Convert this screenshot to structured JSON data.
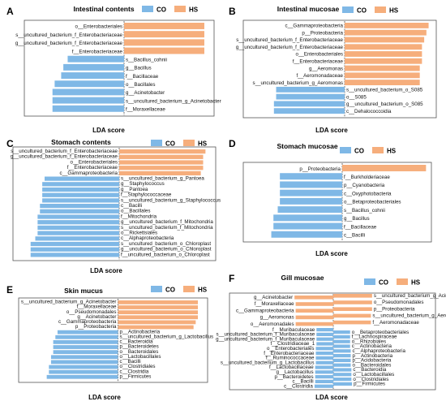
{
  "colors": {
    "CO": "#7fb8e6",
    "HS": "#f6ae7c",
    "axis": "#555555"
  },
  "chart_data": [
    {
      "type": "bar",
      "panel": "A",
      "title": "Intestinal contents",
      "xlabel": "LDA score",
      "legend": [
        "CO",
        "HS"
      ],
      "HS": [
        {
          "label": "o__Enterobacteriales",
          "value": 3.7
        },
        {
          "label": "s__uncultured_bacterium_f_Enterobacteriaceae",
          "value": 3.7
        },
        {
          "label": "g__uncultured_bacterium_f_Enterobacteriaceae",
          "value": 3.7
        },
        {
          "label": "f__Enterobacteriaceae",
          "value": 3.7
        }
      ],
      "CO": [
        {
          "label": "s__Bacillus_cohnii",
          "value": 2.6
        },
        {
          "label": "g__Bacillus",
          "value": 2.8
        },
        {
          "label": "f__Bacillaceae",
          "value": 2.9
        },
        {
          "label": "o__Bacillales",
          "value": 3.2
        },
        {
          "label": "g__Acinetobacter",
          "value": 3.3
        },
        {
          "label": "s__uncultured_bacterium_g_Acinetobacter",
          "value": 3.3
        },
        {
          "label": "f__Moraxellaceae",
          "value": 3.3
        }
      ]
    },
    {
      "type": "bar",
      "panel": "B",
      "title": "Intestinal mucosae",
      "xlabel": "LDA score",
      "legend": [
        "CO",
        "HS"
      ],
      "HS": [
        {
          "label": "c__Gammaproteobacteria",
          "value": 3.8
        },
        {
          "label": "p__Proteobacteria",
          "value": 3.7
        },
        {
          "label": "s__uncultured_bacterium_f_Enterobacteriaceae",
          "value": 3.6
        },
        {
          "label": "g__uncultured_bacterium_f_Enterobacteriaceae",
          "value": 3.5
        },
        {
          "label": "o__Enterobacteriales",
          "value": 3.5
        },
        {
          "label": "f__Enterobacteriaceae",
          "value": 3.5
        },
        {
          "label": "g__Aeromonas",
          "value": 3.4
        },
        {
          "label": "f__Aeromonadaceae",
          "value": 3.4
        },
        {
          "label": "s__uncultured_bacterium_g_Aeromonas",
          "value": 3.4
        }
      ],
      "CO": [
        {
          "label": "s__uncultured_bacterium_o_S085",
          "value": 3.1
        },
        {
          "label": "o__S085",
          "value": 3.1
        },
        {
          "label": "g__uncultured_bacterium_o_S085",
          "value": 3.2
        },
        {
          "label": "c__Dehalococcoidia",
          "value": 3.2
        }
      ]
    },
    {
      "type": "bar",
      "panel": "C",
      "title": "Stomach contents",
      "xlabel": "LDA score",
      "legend": [
        "CO",
        "HS"
      ],
      "HS": [
        {
          "label": "s__uncultured_bacterium_f_Enterobacteriaceae",
          "value": 3.7
        },
        {
          "label": "g__uncultured_bacterium_f_Enterobacteriaceae",
          "value": 3.6
        },
        {
          "label": "o__Enterobacteriales",
          "value": 3.6
        },
        {
          "label": "f__Enterobacteriaceae",
          "value": 3.6
        },
        {
          "label": "c__Gammaproteobacteria",
          "value": 3.5
        }
      ],
      "CO": [
        {
          "label": "s__uncultured_bacterium_g_Pantoea",
          "value": 3.2
        },
        {
          "label": "g__Staphylococcus",
          "value": 3.3
        },
        {
          "label": "g__Pantoea",
          "value": 3.3
        },
        {
          "label": "f__Staphylococcaceae",
          "value": 3.3
        },
        {
          "label": "s__uncultured_bacterium_g_Staphylococcus",
          "value": 3.3
        },
        {
          "label": "c__Bacilli",
          "value": 3.4
        },
        {
          "label": "o__Bacillales",
          "value": 3.4
        },
        {
          "label": "f__Mitochondria",
          "value": 3.5
        },
        {
          "label": "g__uncultured_bacterium_f_Mitochondria",
          "value": 3.5
        },
        {
          "label": "s__uncultured_bacterium_f_Mitochondria",
          "value": 3.5
        },
        {
          "label": "o__Rickettsiales",
          "value": 3.5
        },
        {
          "label": "c__Alphaproteobacteria",
          "value": 3.6
        },
        {
          "label": "s__uncultured_bacterium_o_Chloroplast",
          "value": 3.8
        },
        {
          "label": "g__uncultured_bacterium_o_Chloroplast",
          "value": 3.8
        },
        {
          "label": "f__uncultured_bacterium_o_Chloroplast",
          "value": 3.8
        }
      ]
    },
    {
      "type": "bar",
      "panel": "D",
      "title": "Stomach mucosae",
      "xlabel": "LDA score",
      "legend": [
        "CO",
        "HS"
      ],
      "HS": [
        {
          "label": "p__Proteobacteria",
          "value": 3.9
        }
      ],
      "CO": [
        {
          "label": "f__Burkholderiaceae",
          "value": 2.9
        },
        {
          "label": "p__Cyanobacteria",
          "value": 2.9
        },
        {
          "label": "c__Oxyphotobacteria",
          "value": 2.9
        },
        {
          "label": "o__Betaproteobacteriales",
          "value": 2.9
        },
        {
          "label": "s__Bacillus_cohnii",
          "value": 3.0
        },
        {
          "label": "g__Bacillus",
          "value": 3.2
        },
        {
          "label": "f__Bacillaceae",
          "value": 3.2
        },
        {
          "label": "c__Bacilli",
          "value": 3.3
        }
      ]
    },
    {
      "type": "bar",
      "panel": "E",
      "title": "Skin mucus",
      "xlabel": "LDA score",
      "legend": [
        "CO",
        "HS"
      ],
      "HS": [
        {
          "label": "s__uncultured_bacterium_g_Acinetobacter",
          "value": 3.7
        },
        {
          "label": "f__Moraxellaceae",
          "value": 3.7
        },
        {
          "label": "o__Pseudomonadales",
          "value": 3.7
        },
        {
          "label": "g__Acinetobacter",
          "value": 3.7
        },
        {
          "label": "c__Gammaproteobacteria",
          "value": 3.6
        },
        {
          "label": "p__Proteobacteria",
          "value": 3.5
        }
      ],
      "CO": [
        {
          "label": "p__Actinobacteria",
          "value": 2.8
        },
        {
          "label": "s__uncultured_bacterium_g_Lactobacillus",
          "value": 2.9
        },
        {
          "label": "c__Bacteroidia",
          "value": 3.0
        },
        {
          "label": "p__Bacteroidetes",
          "value": 3.0
        },
        {
          "label": "o__Bacteroidales",
          "value": 3.0
        },
        {
          "label": "o__Lactobacillales",
          "value": 3.1
        },
        {
          "label": "c__Bacilli",
          "value": 3.1
        },
        {
          "label": "o__Clostridiales",
          "value": 3.2
        },
        {
          "label": "c__Clostridia",
          "value": 3.2
        },
        {
          "label": "p__Firmicutes",
          "value": 3.3
        }
      ]
    },
    {
      "type": "bar",
      "panel": "F",
      "title": "Gill mucosae",
      "xlabel": "LDA score",
      "legend": [
        "CO",
        "HS"
      ],
      "layout": "labels-flank",
      "HS": [
        {
          "label": "g__Acinetobacter",
          "value": 3.3
        },
        {
          "label": "f__Moraxellaceae",
          "value": 3.2
        },
        {
          "label": "c__Gammaproteobacteria",
          "value": 3.2
        },
        {
          "label": "g__Aeromonas",
          "value": 3.2
        },
        {
          "label": "o__Aeromonadales",
          "value": 3.2
        }
      ],
      "HS_right": [
        {
          "label": "s__uncultured_bacterium_g_Acinetobacter",
          "value": 3.3
        },
        {
          "label": "o__Pseudomonadales",
          "value": 3.3
        },
        {
          "label": "p__Proteobacteria",
          "value": 3.3
        },
        {
          "label": "s__uncultured_bacterium_g_Aeromonas",
          "value": 3.2
        },
        {
          "label": "f__Aeromonadaceae",
          "value": 3.2
        }
      ],
      "CO_left": [
        {
          "label": "f__Muribaculaceae",
          "value": 2.6
        },
        {
          "label": "s__uncultured_bacterium_f_Muribaculaceae",
          "value": 2.6
        },
        {
          "label": "g__uncultured_bacterium_f_Muribaculaceae",
          "value": 2.6
        },
        {
          "label": "f__Clostridiaceae_1",
          "value": 2.6
        },
        {
          "label": "o__Enterobacteriales",
          "value": 2.7
        },
        {
          "label": "f__Enterobacteriaceae",
          "value": 2.7
        },
        {
          "label": "f__Ruminococcaceae",
          "value": 2.7
        },
        {
          "label": "s__uncultured_bacterium_g_Lactobacillus",
          "value": 2.7
        },
        {
          "label": "f__Lactobacillaceae",
          "value": 2.8
        },
        {
          "label": "g__Lactobacillus",
          "value": 2.8
        },
        {
          "label": "p__Bacteroidetes",
          "value": 2.8
        },
        {
          "label": "c__Bacilli",
          "value": 2.8
        },
        {
          "label": "c__Clostridia",
          "value": 2.9
        }
      ],
      "CO": [
        {
          "label": "o__Betaproteobacteriales",
          "value": 2.6
        },
        {
          "label": "f__Lachnospiraceae",
          "value": 2.6
        },
        {
          "label": "o__Rhizobiales",
          "value": 2.6
        },
        {
          "label": "c__Actinobacteria",
          "value": 2.6
        },
        {
          "label": "c__Alphaproteobacteria",
          "value": 2.7
        },
        {
          "label": "p__Actinobacteria",
          "value": 2.7
        },
        {
          "label": "p__Acidobacteria",
          "value": 2.7
        },
        {
          "label": "o__Bacteroidales",
          "value": 2.7
        },
        {
          "label": "c__Bacteroidia",
          "value": 2.8
        },
        {
          "label": "o__Lactobacillales",
          "value": 2.8
        },
        {
          "label": "o__Clostridiales",
          "value": 2.8
        },
        {
          "label": "p__Firmicutes",
          "value": 2.9
        }
      ]
    }
  ]
}
